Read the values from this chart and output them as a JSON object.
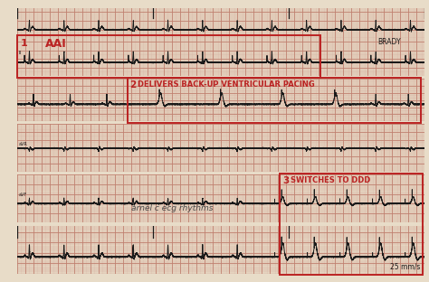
{
  "bg_color": "#e8dcc8",
  "grid_minor_color": "#d4a898",
  "grid_major_color": "#c08070",
  "ecg_color": "#1a1a1a",
  "box_color": "#bb2222",
  "text_color_red": "#bb2222",
  "text_color_black": "#1a1a1a",
  "label1": "1",
  "label1_text": "AAI",
  "label1_subtext": "BRADY",
  "label2": "2",
  "label2_text": "  DELIVERS BACK-UP VENTRICULAR PACING",
  "label3": "3",
  "label3_text": "  SWITCHES TO DDD",
  "watermark": "arnel c ecg rhythms",
  "speed_label": "25 mm/s",
  "fig_width": 4.74,
  "fig_height": 3.12,
  "dpi": 100
}
